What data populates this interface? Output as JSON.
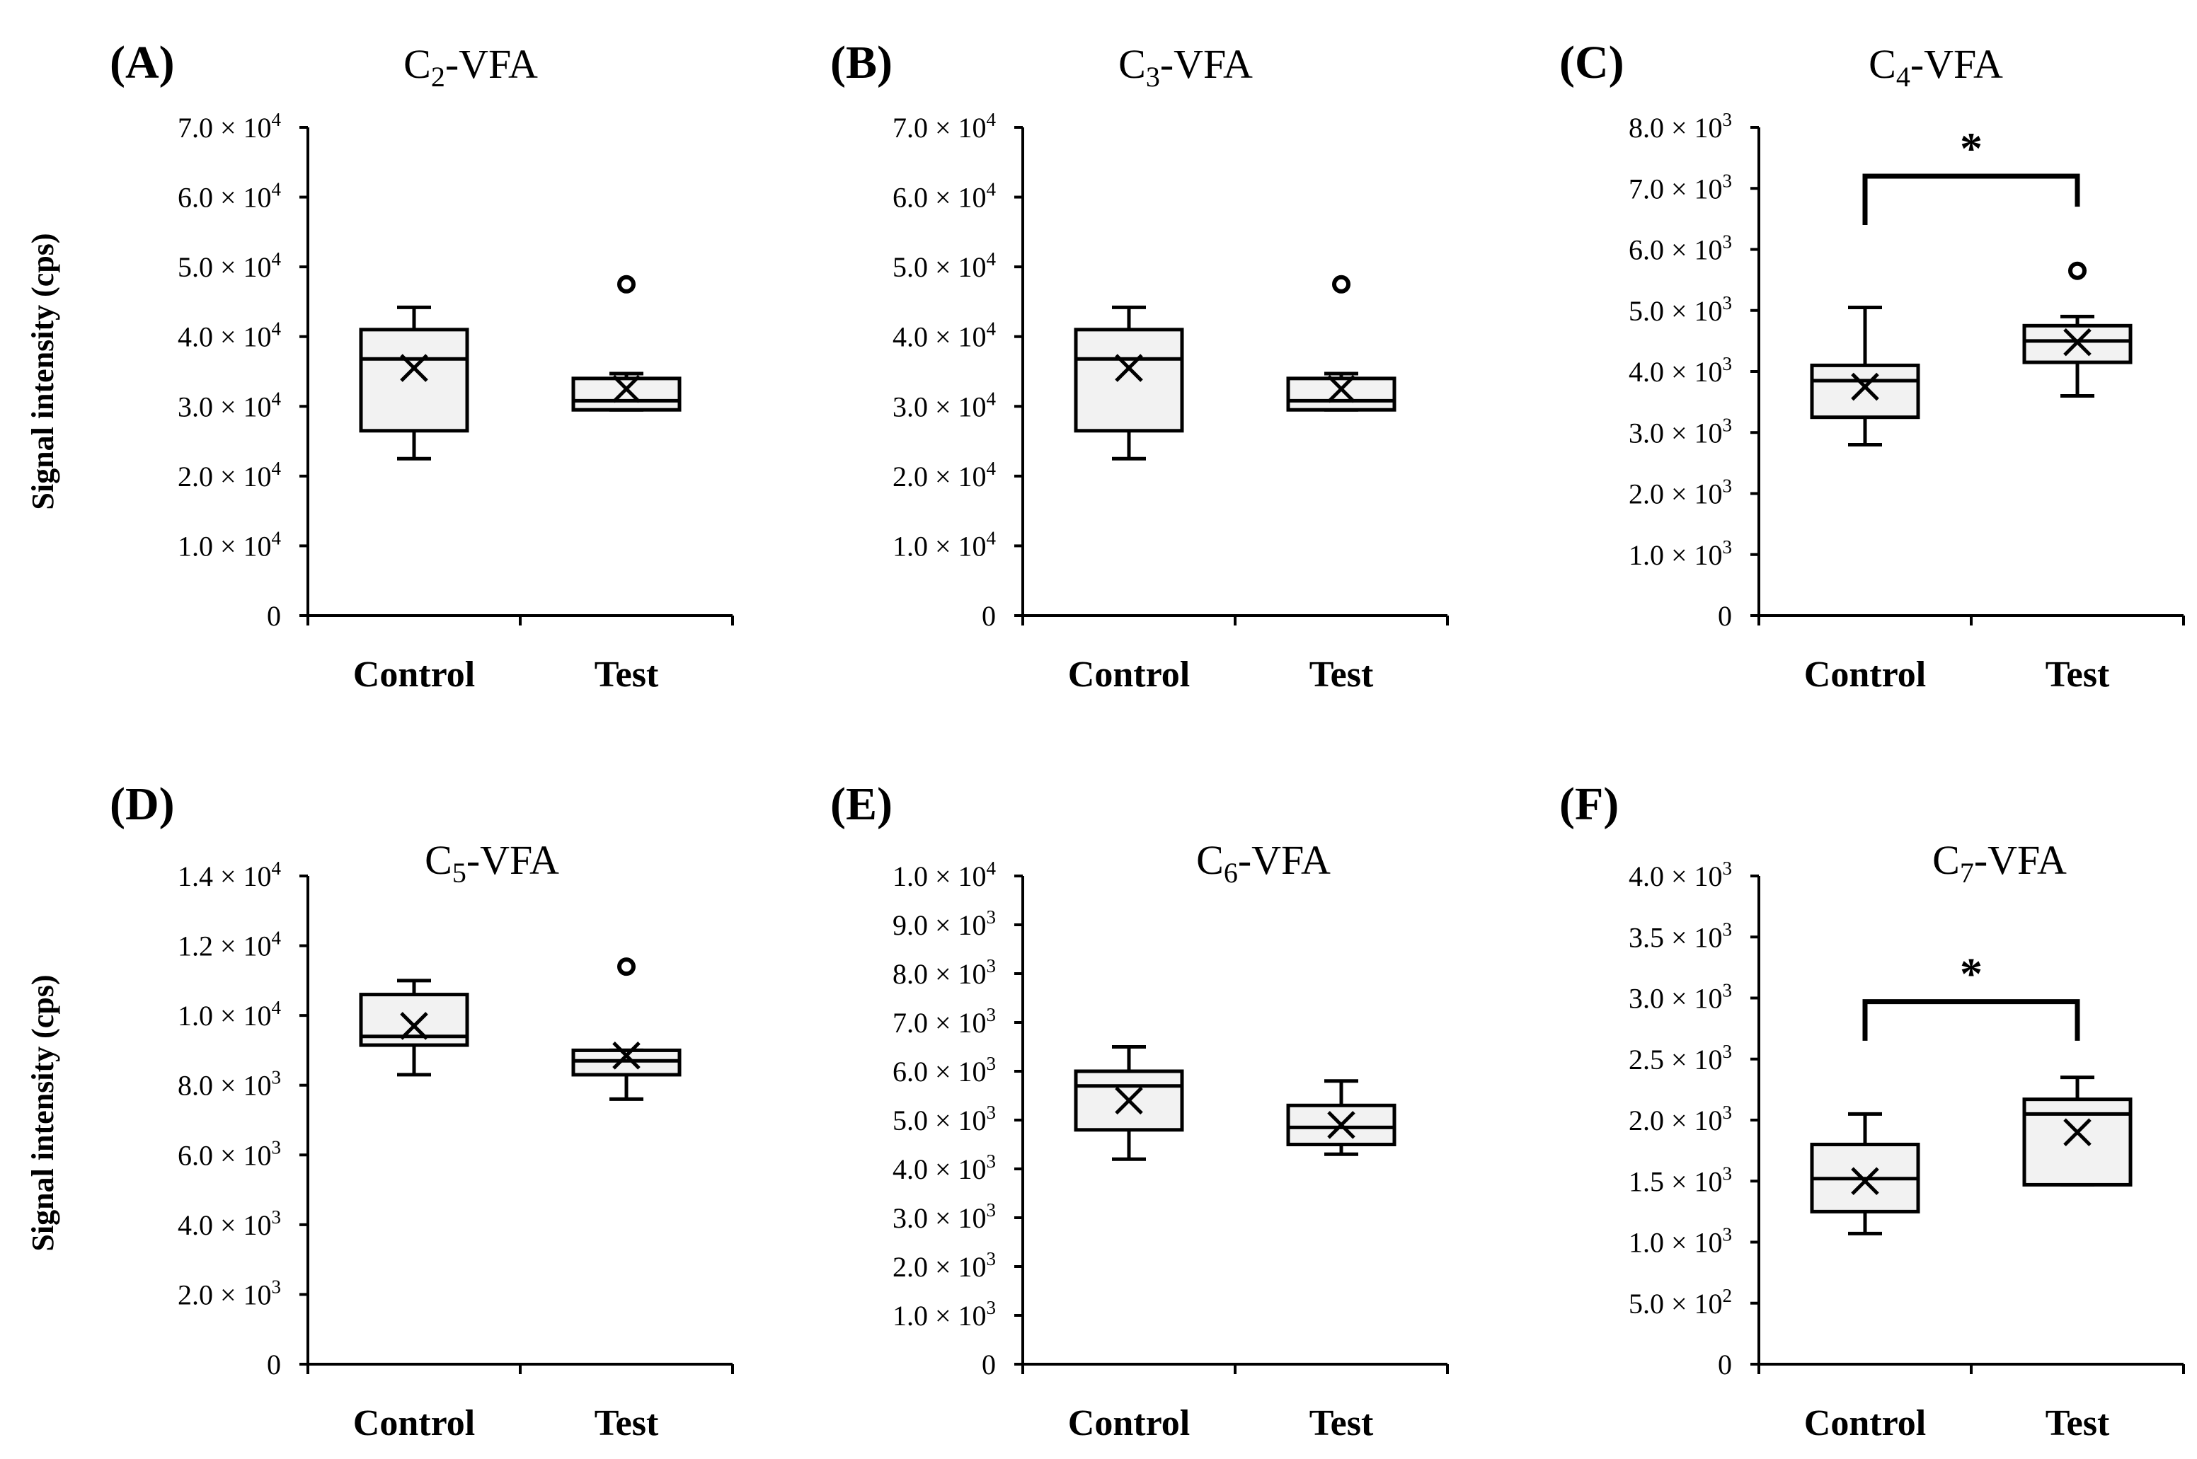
{
  "figure": {
    "ylabel": "Signal intensity (cps)"
  },
  "chart_data": [
    {
      "type": "box",
      "panel": "(A)",
      "title_main": "C",
      "title_sub": "2",
      "title_rest": "-VFA",
      "ylabel": "Signal intensity (cps)",
      "ylim": [
        0,
        70000
      ],
      "yticks": [
        {
          "value": 0,
          "mantissa": "0",
          "exp": ""
        },
        {
          "value": 10000,
          "mantissa": "1.0 × 10",
          "exp": "4"
        },
        {
          "value": 20000,
          "mantissa": "2.0 × 10",
          "exp": "4"
        },
        {
          "value": 30000,
          "mantissa": "3.0 × 10",
          "exp": "4"
        },
        {
          "value": 40000,
          "mantissa": "4.0 × 10",
          "exp": "4"
        },
        {
          "value": 50000,
          "mantissa": "5.0 × 10",
          "exp": "4"
        },
        {
          "value": 60000,
          "mantissa": "6.0 × 10",
          "exp": "4"
        },
        {
          "value": 70000,
          "mantissa": "7.0 × 10",
          "exp": "4"
        }
      ],
      "categories": [
        "Control",
        "Test"
      ],
      "boxes": [
        {
          "name": "Control",
          "min": 22500,
          "q1": 26500,
          "median": 36800,
          "q3": 41000,
          "max": 44200,
          "mean": 35500,
          "outliers": []
        },
        {
          "name": "Test",
          "min": 29500,
          "q1": 29500,
          "median": 30800,
          "q3": 34000,
          "max": 34700,
          "mean": 32500,
          "outliers": [
            47500
          ]
        }
      ],
      "significance": null
    },
    {
      "type": "box",
      "panel": "(B)",
      "title_main": "C",
      "title_sub": "3",
      "title_rest": "-VFA",
      "ylabel": "",
      "ylim": [
        0,
        70000
      ],
      "yticks": [
        {
          "value": 0,
          "mantissa": "0",
          "exp": ""
        },
        {
          "value": 10000,
          "mantissa": "1.0 × 10",
          "exp": "4"
        },
        {
          "value": 20000,
          "mantissa": "2.0 × 10",
          "exp": "4"
        },
        {
          "value": 30000,
          "mantissa": "3.0 × 10",
          "exp": "4"
        },
        {
          "value": 40000,
          "mantissa": "4.0 × 10",
          "exp": "4"
        },
        {
          "value": 50000,
          "mantissa": "5.0 × 10",
          "exp": "4"
        },
        {
          "value": 60000,
          "mantissa": "6.0 × 10",
          "exp": "4"
        },
        {
          "value": 70000,
          "mantissa": "7.0 × 10",
          "exp": "4"
        }
      ],
      "categories": [
        "Control",
        "Test"
      ],
      "boxes": [
        {
          "name": "Control",
          "min": 22500,
          "q1": 26500,
          "median": 36800,
          "q3": 41000,
          "max": 44200,
          "mean": 35500,
          "outliers": []
        },
        {
          "name": "Test",
          "min": 29500,
          "q1": 29500,
          "median": 30800,
          "q3": 34000,
          "max": 34700,
          "mean": 32500,
          "outliers": [
            47500
          ]
        }
      ],
      "significance": null
    },
    {
      "type": "box",
      "panel": "(C)",
      "title_main": "C",
      "title_sub": "4",
      "title_rest": "-VFA",
      "ylabel": "",
      "ylim": [
        0,
        8000
      ],
      "yticks": [
        {
          "value": 0,
          "mantissa": "0",
          "exp": ""
        },
        {
          "value": 1000,
          "mantissa": "1.0 × 10",
          "exp": "3"
        },
        {
          "value": 2000,
          "mantissa": "2.0 × 10",
          "exp": "3"
        },
        {
          "value": 3000,
          "mantissa": "3.0 × 10",
          "exp": "3"
        },
        {
          "value": 4000,
          "mantissa": "4.0 × 10",
          "exp": "3"
        },
        {
          "value": 5000,
          "mantissa": "5.0 × 10",
          "exp": "3"
        },
        {
          "value": 6000,
          "mantissa": "6.0 × 10",
          "exp": "3"
        },
        {
          "value": 7000,
          "mantissa": "7.0 × 10",
          "exp": "3"
        },
        {
          "value": 8000,
          "mantissa": "8.0 × 10",
          "exp": "3"
        }
      ],
      "categories": [
        "Control",
        "Test"
      ],
      "boxes": [
        {
          "name": "Control",
          "min": 2800,
          "q1": 3250,
          "median": 3850,
          "q3": 4100,
          "max": 5050,
          "mean": 3750,
          "outliers": []
        },
        {
          "name": "Test",
          "min": 3600,
          "q1": 4150,
          "median": 4500,
          "q3": 4750,
          "max": 4900,
          "mean": 4480,
          "outliers": [
            5650
          ]
        }
      ],
      "significance": {
        "label": "*",
        "level": 7200,
        "left_drop": 6400,
        "right_drop": 6700
      }
    },
    {
      "type": "box",
      "panel": "(D)",
      "title_main": "C",
      "title_sub": "5",
      "title_rest": "-VFA",
      "ylabel": "Signal intensity (cps)",
      "ylim": [
        0,
        14000
      ],
      "yticks": [
        {
          "value": 0,
          "mantissa": "0",
          "exp": ""
        },
        {
          "value": 2000,
          "mantissa": "2.0 × 10",
          "exp": "3"
        },
        {
          "value": 4000,
          "mantissa": "4.0 × 10",
          "exp": "3"
        },
        {
          "value": 6000,
          "mantissa": "6.0 × 10",
          "exp": "3"
        },
        {
          "value": 8000,
          "mantissa": "8.0 × 10",
          "exp": "3"
        },
        {
          "value": 10000,
          "mantissa": "1.0 × 10",
          "exp": "4"
        },
        {
          "value": 12000,
          "mantissa": "1.2 × 10",
          "exp": "4"
        },
        {
          "value": 14000,
          "mantissa": "1.4 × 10",
          "exp": "4"
        }
      ],
      "categories": [
        "Control",
        "Test"
      ],
      "boxes": [
        {
          "name": "Control",
          "min": 8300,
          "q1": 9150,
          "median": 9400,
          "q3": 10600,
          "max": 11000,
          "mean": 9700,
          "outliers": []
        },
        {
          "name": "Test",
          "min": 7600,
          "q1": 8300,
          "median": 8700,
          "q3": 9000,
          "max": 9000,
          "mean": 8850,
          "outliers": [
            11400
          ]
        }
      ],
      "significance": null
    },
    {
      "type": "box",
      "panel": "(E)",
      "title_main": "C",
      "title_sub": "6",
      "title_rest": "-VFA",
      "ylabel": "",
      "ylim": [
        0,
        10000
      ],
      "yticks": [
        {
          "value": 0,
          "mantissa": "0",
          "exp": ""
        },
        {
          "value": 1000,
          "mantissa": "1.0 × 10",
          "exp": "3"
        },
        {
          "value": 2000,
          "mantissa": "2.0 × 10",
          "exp": "3"
        },
        {
          "value": 3000,
          "mantissa": "3.0 × 10",
          "exp": "3"
        },
        {
          "value": 4000,
          "mantissa": "4.0 × 10",
          "exp": "3"
        },
        {
          "value": 5000,
          "mantissa": "5.0 × 10",
          "exp": "3"
        },
        {
          "value": 6000,
          "mantissa": "6.0 × 10",
          "exp": "3"
        },
        {
          "value": 7000,
          "mantissa": "7.0 × 10",
          "exp": "3"
        },
        {
          "value": 8000,
          "mantissa": "8.0 × 10",
          "exp": "3"
        },
        {
          "value": 9000,
          "mantissa": "9.0 × 10",
          "exp": "3"
        },
        {
          "value": 10000,
          "mantissa": "1.0 × 10",
          "exp": "4"
        }
      ],
      "categories": [
        "Control",
        "Test"
      ],
      "boxes": [
        {
          "name": "Control",
          "min": 4200,
          "q1": 4800,
          "median": 5700,
          "q3": 6000,
          "max": 6500,
          "mean": 5400,
          "outliers": []
        },
        {
          "name": "Test",
          "min": 4300,
          "q1": 4500,
          "median": 4850,
          "q3": 5300,
          "max": 5800,
          "mean": 4900,
          "outliers": []
        }
      ],
      "significance": null
    },
    {
      "type": "box",
      "panel": "(F)",
      "title_main": "C",
      "title_sub": "7",
      "title_rest": "-VFA",
      "ylabel": "",
      "ylim": [
        0,
        4000
      ],
      "yticks": [
        {
          "value": 0,
          "mantissa": "0",
          "exp": ""
        },
        {
          "value": 500,
          "mantissa": "5.0 × 10",
          "exp": "2"
        },
        {
          "value": 1000,
          "mantissa": "1.0 × 10",
          "exp": "3"
        },
        {
          "value": 1500,
          "mantissa": "1.5 × 10",
          "exp": "3"
        },
        {
          "value": 2000,
          "mantissa": "2.0 × 10",
          "exp": "3"
        },
        {
          "value": 2500,
          "mantissa": "2.5 × 10",
          "exp": "3"
        },
        {
          "value": 3000,
          "mantissa": "3.0 × 10",
          "exp": "3"
        },
        {
          "value": 3500,
          "mantissa": "3.5 × 10",
          "exp": "3"
        },
        {
          "value": 4000,
          "mantissa": "4.0 × 10",
          "exp": "3"
        }
      ],
      "categories": [
        "Control",
        "Test"
      ],
      "boxes": [
        {
          "name": "Control",
          "min": 1070,
          "q1": 1250,
          "median": 1520,
          "q3": 1800,
          "max": 2050,
          "mean": 1500,
          "outliers": []
        },
        {
          "name": "Test",
          "min": 1470,
          "q1": 1470,
          "median": 2050,
          "q3": 2170,
          "max": 2350,
          "mean": 1900,
          "outliers": []
        }
      ],
      "significance": {
        "label": "*",
        "level": 2970,
        "left_drop": 2650,
        "right_drop": 2650
      }
    }
  ]
}
